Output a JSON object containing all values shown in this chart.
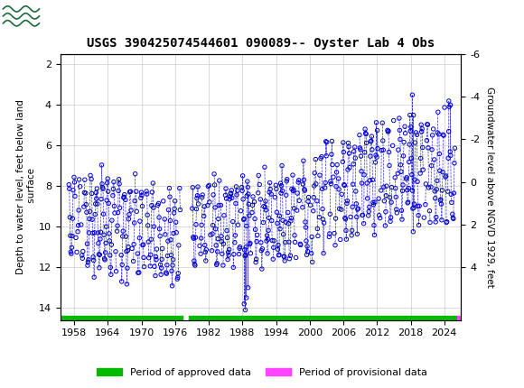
{
  "title": "USGS 390425074544601 090089-- Oyster Lab 4 Obs",
  "ylabel_left": "Depth to water level, feet below land\n surface",
  "ylabel_right": "Groundwater level above NGVD 1929, feet",
  "ylim_left": [
    14.6,
    1.5
  ],
  "ylim_right": [
    6.5,
    -5.5
  ],
  "yticks_left": [
    2,
    4,
    6,
    8,
    10,
    12,
    14
  ],
  "yticks_right": [
    4,
    2,
    0,
    -2,
    -4,
    -6
  ],
  "xticks": [
    1958,
    1964,
    1970,
    1976,
    1982,
    1988,
    1994,
    2000,
    2006,
    2012,
    2018,
    2024
  ],
  "xlim": [
    1955.5,
    2027.0
  ],
  "header_color": "#1b6c3c",
  "approved_color": "#00bb00",
  "provisional_color": "#ff44ff",
  "point_color": "#0000cc",
  "point_facecolor": "none",
  "dashed_line_color": "#0000cc",
  "background_color": "#ffffff",
  "grid_color": "#cccccc",
  "approved_bar_start": 1955.5,
  "approved_bar_end1": 1977.3,
  "approved_bar_start2": 1978.5,
  "approved_bar_end2": 2026.3,
  "provisional_bar_start": 2026.3,
  "provisional_bar_end": 2027.0,
  "legend_approved_label": "Period of approved data",
  "legend_provisional_label": "Period of provisional data"
}
